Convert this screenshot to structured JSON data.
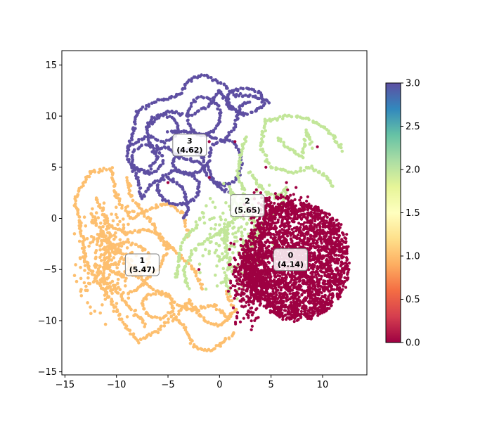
{
  "chart_data": {
    "type": "scatter",
    "title": "",
    "xlabel": "",
    "ylabel": "",
    "xlim": [
      -15.3,
      14.3
    ],
    "ylim": [
      -15.3,
      16.4
    ],
    "xticks": [
      -15,
      -10,
      -5,
      0,
      5,
      10
    ],
    "yticks": [
      -15,
      -10,
      -5,
      0,
      5,
      10,
      15
    ],
    "grid": false,
    "legend": "none",
    "colormap": "Spectral",
    "colorbar": {
      "range": [
        0.0,
        3.0
      ],
      "ticks": [
        "0.0",
        "0.5",
        "1.0",
        "1.5",
        "2.0",
        "2.5",
        "3.0"
      ],
      "placement": "right"
    },
    "series": [
      {
        "cluster": 0,
        "color": "#9e0142",
        "center": [
          8,
          -5
        ],
        "extent": [
          -2,
          12.5,
          -10.5,
          2.5
        ],
        "points_approx": 3000
      },
      {
        "cluster": 1,
        "color": "#fdbf6f",
        "center": [
          -8,
          -4
        ],
        "extent": [
          -14,
          2,
          -13,
          5
        ],
        "points_approx": 2000
      },
      {
        "cluster": 2,
        "color": "#c2e699",
        "center": [
          4,
          0
        ],
        "extent": [
          -4,
          12,
          -8,
          10
        ],
        "points_approx": 1500
      },
      {
        "cluster": 3,
        "color": "#5e4fa2",
        "center": [
          -2,
          7
        ],
        "extent": [
          -9,
          5,
          0,
          14
        ],
        "points_approx": 1500
      }
    ],
    "annotations": [
      {
        "label": "0",
        "value": "(4.14)",
        "x": 6.9,
        "y": -4.0
      },
      {
        "label": "1",
        "value": "(5.47)",
        "x": -7.5,
        "y": -4.5
      },
      {
        "label": "2",
        "value": "(5.65)",
        "x": 2.7,
        "y": 1.3
      },
      {
        "label": "3",
        "value": "(4.62)",
        "x": -2.9,
        "y": 7.2
      }
    ]
  }
}
